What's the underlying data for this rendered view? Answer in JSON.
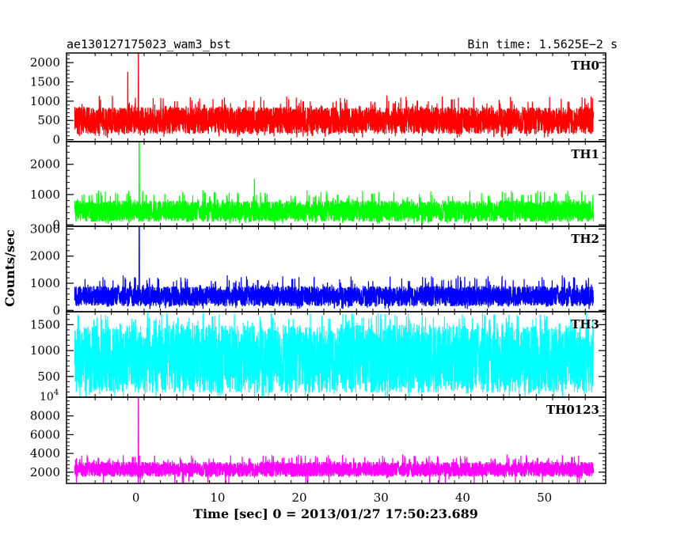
{
  "header": {
    "title": "ae130127175023_wam3_bst",
    "bin_time": "Bin time: 1.5625E−2 s"
  },
  "axis": {
    "xlabel": "Time [sec] 0 = 2013/01/27 17:50:23.689",
    "ylabel": "Counts/sec",
    "xlim": [
      -8.5,
      57.5
    ],
    "x_ticks": [
      0,
      10,
      20,
      30,
      40,
      50
    ],
    "x_tick_labels": [
      "0",
      "10",
      "20",
      "30",
      "40",
      "50"
    ]
  },
  "chart_data": [
    {
      "type": "line",
      "name": "TH0",
      "color": "#ff0000",
      "ylim": [
        -50,
        2250
      ],
      "y_ticks": [
        0,
        500,
        1000,
        1500,
        2000
      ],
      "y_tick_labels": [
        "0",
        "500",
        "1000",
        "1500",
        "2000"
      ],
      "x_range": [
        -7.5,
        56
      ],
      "baseline": {
        "low": 150,
        "high": 850,
        "typical_peak": 1150
      },
      "spikes": [
        {
          "x": -1,
          "y": 1750
        },
        {
          "x": 0.3,
          "y": 2250
        }
      ]
    },
    {
      "type": "line",
      "name": "TH1",
      "color": "#00ff00",
      "ylim": [
        -50,
        2750
      ],
      "y_ticks": [
        0,
        1000,
        2000
      ],
      "y_tick_labels": [
        "0",
        "1000",
        "2000"
      ],
      "x_range": [
        -7.5,
        56
      ],
      "baseline": {
        "low": 100,
        "high": 800,
        "typical_peak": 1150
      },
      "spikes": [
        {
          "x": 0.4,
          "y": 2750
        },
        {
          "x": 14.5,
          "y": 1500
        }
      ]
    },
    {
      "type": "line",
      "name": "TH2",
      "color": "#0000ff",
      "ylim": [
        -50,
        3100
      ],
      "y_ticks": [
        0,
        1000,
        2000,
        3000
      ],
      "y_tick_labels": [
        "0",
        "1000",
        "2000",
        "3000"
      ],
      "x_range": [
        -7.5,
        56
      ],
      "baseline": {
        "low": 150,
        "high": 900,
        "typical_peak": 1300
      },
      "spikes": [
        {
          "x": 0.4,
          "y": 3100
        }
      ]
    },
    {
      "type": "line",
      "name": "TH3",
      "color": "#00ffff",
      "ylim": [
        100,
        1750
      ],
      "y_ticks": [
        500,
        1000,
        1500
      ],
      "y_tick_labels": [
        "500",
        "1000",
        "1500"
      ],
      "x_range": [
        -7.5,
        56
      ],
      "baseline": {
        "low": 180,
        "high": 1500,
        "typical_peak": 1750
      },
      "spikes": []
    },
    {
      "type": "line",
      "name": "TH0123",
      "color": "#ff00ff",
      "ylim": [
        800,
        10000
      ],
      "y_ticks": [
        2000,
        4000,
        6000,
        8000
      ],
      "y_tick_labels": [
        "2000",
        "4000",
        "6000",
        "8000"
      ],
      "y_exponent_label": "10",
      "y_exponent_sup": "4",
      "x_range": [
        -7.5,
        56
      ],
      "baseline": {
        "low": 1500,
        "high": 3100,
        "typical_peak": 3900
      },
      "spikes": [
        {
          "x": 0.3,
          "y": 10000
        }
      ]
    }
  ]
}
